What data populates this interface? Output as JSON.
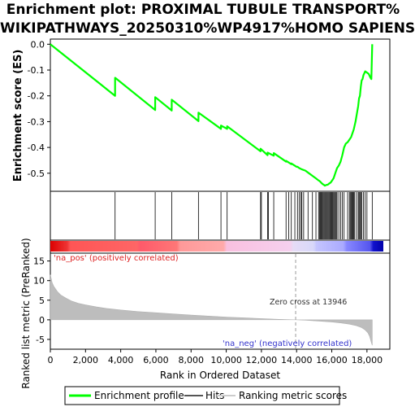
{
  "title_lines": [
    "Enrichment plot: PROXIMAL TUBULE TRANSPORT%",
    "WIKIPATHWAYS_20250310%WP4917%HOMO SAPIENS"
  ],
  "chart_data": {
    "type": "line",
    "es_panel": {
      "ylabel": "Enrichment score (ES)",
      "ylim": [
        -0.57,
        0.02
      ],
      "yticks": [
        0.0,
        -0.1,
        -0.2,
        -0.3,
        -0.4,
        -0.5
      ],
      "ytick_labels": [
        "0.0",
        "-0.1",
        "-0.2",
        "-0.3",
        "-0.4",
        "-0.5"
      ],
      "series": [
        {
          "name": "Enrichment profile",
          "color": "#00ff00",
          "x": [
            0,
            3680,
            3681,
            5960,
            5961,
            6900,
            6901,
            8420,
            8421,
            9700,
            9701,
            10050,
            10051,
            11950,
            11951,
            12350,
            12351,
            12700,
            12701,
            13400,
            13401,
            13700,
            13701,
            14000,
            14050,
            14150,
            14300,
            14500,
            14700,
            14900,
            15100,
            15250,
            15300,
            15350,
            15400,
            15450,
            15500,
            15550,
            15600,
            15650,
            15700,
            15750,
            15800,
            15850,
            15900,
            15950,
            16000,
            16050,
            16100,
            16150,
            16200,
            16250,
            16300,
            16400,
            16500,
            16600,
            16700,
            16800,
            16900,
            17000,
            17050,
            17100,
            17150,
            17200,
            17250,
            17300,
            17350,
            17400,
            17450,
            17500,
            17550,
            17600,
            17650,
            17700,
            17750,
            17800,
            17900,
            18000,
            18100,
            18200,
            18250,
            18300
          ],
          "y": [
            0.0,
            -0.2,
            -0.13,
            -0.255,
            -0.205,
            -0.257,
            -0.215,
            -0.298,
            -0.265,
            -0.328,
            -0.315,
            -0.328,
            -0.318,
            -0.415,
            -0.405,
            -0.43,
            -0.42,
            -0.432,
            -0.422,
            -0.455,
            -0.452,
            -0.465,
            -0.462,
            -0.475,
            -0.475,
            -0.48,
            -0.485,
            -0.49,
            -0.5,
            -0.51,
            -0.52,
            -0.528,
            -0.53,
            -0.533,
            -0.537,
            -0.54,
            -0.543,
            -0.545,
            -0.548,
            -0.547,
            -0.545,
            -0.545,
            -0.543,
            -0.54,
            -0.538,
            -0.535,
            -0.53,
            -0.525,
            -0.52,
            -0.51,
            -0.5,
            -0.49,
            -0.48,
            -0.47,
            -0.455,
            -0.43,
            -0.4,
            -0.385,
            -0.38,
            -0.37,
            -0.365,
            -0.36,
            -0.35,
            -0.34,
            -0.33,
            -0.315,
            -0.3,
            -0.28,
            -0.26,
            -0.24,
            -0.21,
            -0.2,
            -0.165,
            -0.14,
            -0.135,
            -0.12,
            -0.105,
            -0.11,
            -0.115,
            -0.13,
            -0.135,
            0.0
          ]
        }
      ]
    },
    "hits": {
      "name": "Hits",
      "positions": [
        3680,
        5960,
        6900,
        8420,
        9700,
        10050,
        11950,
        12000,
        12350,
        12400,
        12700,
        13400,
        13550,
        13700,
        13900,
        14050,
        14150,
        14250,
        14300,
        14400,
        14650,
        14900,
        15100,
        15250,
        15300,
        15350,
        15400,
        15450,
        15500,
        15550,
        15600,
        15650,
        15700,
        15750,
        15800,
        15850,
        15900,
        15950,
        16000,
        16050,
        16100,
        16150,
        16200,
        16250,
        16300,
        16400,
        16500,
        16600,
        16700,
        16900,
        17000,
        17050,
        17100,
        17150,
        17200,
        17250,
        17300,
        17400,
        17500,
        17550,
        17600,
        17650,
        17700,
        17800,
        17900,
        18000,
        18300
      ]
    },
    "ranked_metric": {
      "name": "Ranking metric scores",
      "ylabel": "Ranked list metric (PreRanked)",
      "ylim": [
        -7.5,
        17
      ],
      "yticks": [
        15,
        10,
        5,
        0,
        -5
      ],
      "ytick_labels": [
        "15",
        "10",
        "5",
        "0",
        "-5"
      ],
      "x": [
        0,
        100,
        200,
        400,
        600,
        900,
        1200,
        1600,
        2000,
        2600,
        3200,
        4000,
        5000,
        6000,
        7000,
        8000,
        9000,
        10000,
        11000,
        12000,
        13000,
        13946,
        14500,
        15000,
        15500,
        16000,
        16500,
        17000,
        17400,
        17700,
        17900,
        18050,
        18150,
        18250,
        18300
      ],
      "y": [
        11.5,
        9.5,
        8.5,
        7.2,
        6.3,
        5.5,
        4.8,
        4.2,
        3.8,
        3.3,
        2.9,
        2.5,
        2.1,
        1.8,
        1.5,
        1.2,
        0.95,
        0.7,
        0.5,
        0.3,
        0.12,
        0.0,
        -0.1,
        -0.25,
        -0.4,
        -0.55,
        -0.8,
        -1.1,
        -1.5,
        -2.0,
        -2.6,
        -3.3,
        -4.2,
        -5.8,
        -6.5
      ]
    },
    "x_axis": {
      "xlabel": "Rank in Ordered Dataset",
      "xlim": [
        0,
        19300
      ],
      "xticks": [
        0,
        2000,
        4000,
        6000,
        8000,
        10000,
        12000,
        14000,
        16000,
        18000
      ],
      "xtick_labels": [
        "0",
        "2,000",
        "4,000",
        "6,000",
        "8,000",
        "10,000",
        "12,000",
        "14,000",
        "16,000",
        "18,000"
      ]
    },
    "zero_cross": 13946,
    "annotations": {
      "pos": "'na_pos' (positively correlated)",
      "neg": "'na_neg' (negatively correlated)",
      "zero": "Zero cross at 13946"
    },
    "legend": {
      "placement": "bottom",
      "items": [
        {
          "label": "Enrichment profile",
          "color": "#00ff00"
        },
        {
          "label": "Hits",
          "color": "#555555"
        },
        {
          "label": "Ranking metric scores",
          "color": "#cccccc"
        }
      ]
    },
    "grid": false
  }
}
